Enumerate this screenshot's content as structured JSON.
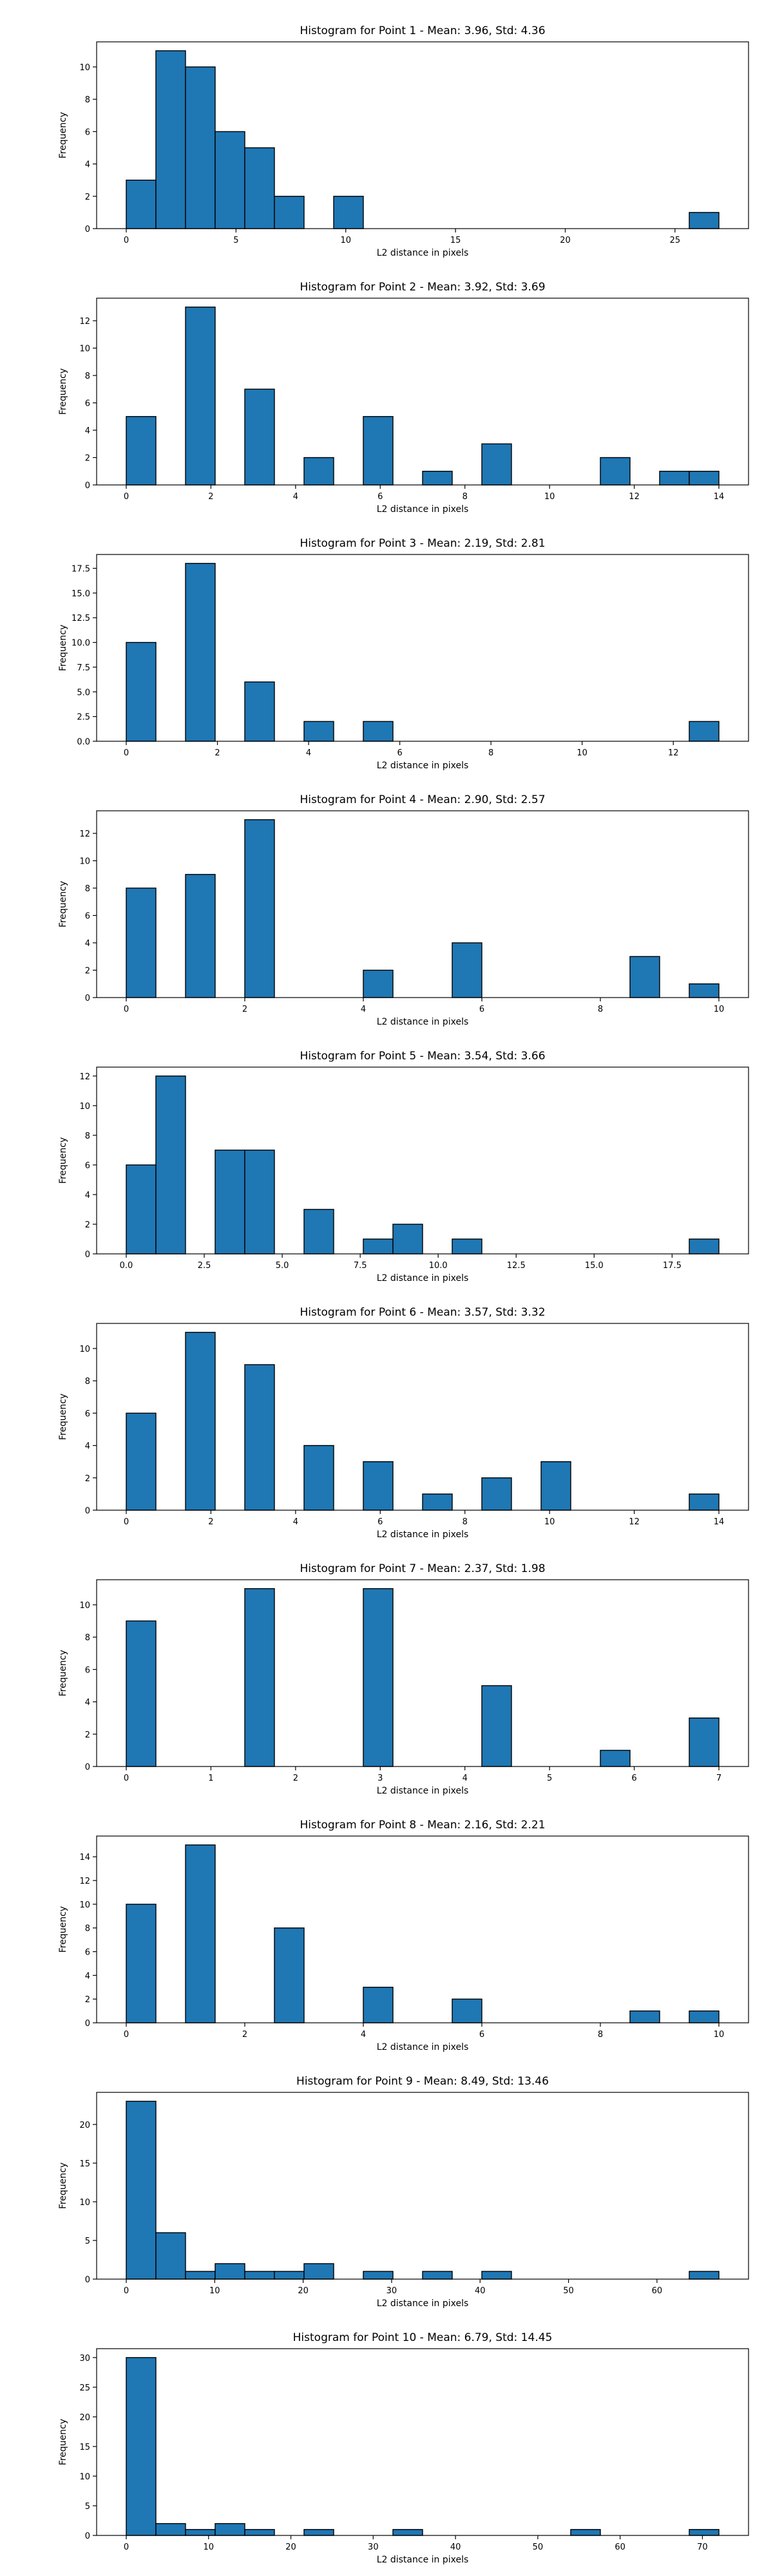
{
  "chart_data": [
    {
      "type": "bar",
      "title": "Histogram for Point 1 - Mean: 3.96, Std: 4.36",
      "xlabel": "L2 distance in pixels",
      "ylabel": "Frequency",
      "xlim": [
        -1.35,
        28.35
      ],
      "ylim": [
        0,
        11.55
      ],
      "xticks": [
        0,
        5,
        10,
        15,
        20,
        25
      ],
      "xtick_labels": [
        "0",
        "5",
        "10",
        "15",
        "20",
        "25"
      ],
      "yticks": [
        0,
        2,
        4,
        6,
        8,
        10
      ],
      "ytick_labels": [
        "0",
        "2",
        "4",
        "6",
        "8",
        "10"
      ],
      "bin_edges": [
        0,
        1.35,
        2.7,
        4.05,
        5.4,
        6.75,
        8.1,
        9.45,
        10.8,
        12.15,
        13.5,
        14.85,
        16.2,
        17.55,
        18.9,
        20.25,
        21.6,
        22.95,
        24.3,
        25.65,
        27.0
      ],
      "counts": [
        3,
        11,
        10,
        6,
        5,
        2,
        0,
        2,
        0,
        0,
        0,
        0,
        0,
        0,
        0,
        0,
        0,
        0,
        0,
        1
      ],
      "color": "#1f77b4",
      "edgecolor": "#000000",
      "grid": false,
      "legend": "none"
    },
    {
      "type": "bar",
      "title": "Histogram for Point 2 - Mean: 3.92, Std: 3.69",
      "xlabel": "L2 distance in pixels",
      "ylabel": "Frequency",
      "xlim": [
        -0.7,
        14.7
      ],
      "ylim": [
        0,
        13.65
      ],
      "xticks": [
        0,
        2,
        4,
        6,
        8,
        10,
        12,
        14
      ],
      "xtick_labels": [
        "0",
        "2",
        "4",
        "6",
        "8",
        "10",
        "12",
        "14"
      ],
      "yticks": [
        0,
        2,
        4,
        6,
        8,
        10,
        12
      ],
      "ytick_labels": [
        "0",
        "2",
        "4",
        "6",
        "8",
        "10",
        "12"
      ],
      "bin_edges": [
        0,
        0.7,
        1.4,
        2.1,
        2.8,
        3.5,
        4.2,
        4.9,
        5.6,
        6.3,
        7.0,
        7.7,
        8.4,
        9.1,
        9.8,
        10.5,
        11.2,
        11.9,
        12.6,
        13.3,
        14.0
      ],
      "counts": [
        5,
        0,
        13,
        0,
        7,
        0,
        2,
        0,
        5,
        0,
        1,
        0,
        3,
        0,
        0,
        0,
        2,
        0,
        1,
        1
      ],
      "color": "#1f77b4",
      "edgecolor": "#000000",
      "grid": false,
      "legend": "none"
    },
    {
      "type": "bar",
      "title": "Histogram for Point 3 - Mean: 2.19, Std: 2.81",
      "xlabel": "L2 distance in pixels",
      "ylabel": "Frequency",
      "xlim": [
        -0.65,
        13.65
      ],
      "ylim": [
        0,
        18.9
      ],
      "xticks": [
        0,
        2,
        4,
        6,
        8,
        10,
        12
      ],
      "xtick_labels": [
        "0",
        "2",
        "4",
        "6",
        "8",
        "10",
        "12"
      ],
      "yticks": [
        0,
        2.5,
        5,
        7.5,
        10,
        12.5,
        15,
        17.5
      ],
      "ytick_labels": [
        "0.0",
        "2.5",
        "5.0",
        "7.5",
        "10.0",
        "12.5",
        "15.0",
        "17.5"
      ],
      "bin_edges": [
        0,
        0.65,
        1.3,
        1.95,
        2.6,
        3.25,
        3.9,
        4.55,
        5.2,
        5.85,
        6.5,
        7.15,
        7.8,
        8.45,
        9.1,
        9.75,
        10.4,
        11.05,
        11.7,
        12.35,
        13.0
      ],
      "counts": [
        10,
        0,
        18,
        0,
        6,
        0,
        2,
        0,
        2,
        0,
        0,
        0,
        0,
        0,
        0,
        0,
        0,
        0,
        0,
        2
      ],
      "color": "#1f77b4",
      "edgecolor": "#000000",
      "grid": false,
      "legend": "none"
    },
    {
      "type": "bar",
      "title": "Histogram for Point 4 - Mean: 2.90, Std: 2.57",
      "xlabel": "L2 distance in pixels",
      "ylabel": "Frequency",
      "xlim": [
        -0.5,
        10.5
      ],
      "ylim": [
        0,
        13.65
      ],
      "xticks": [
        0,
        2,
        4,
        6,
        8,
        10
      ],
      "xtick_labels": [
        "0",
        "2",
        "4",
        "6",
        "8",
        "10"
      ],
      "yticks": [
        0,
        2,
        4,
        6,
        8,
        10,
        12
      ],
      "ytick_labels": [
        "0",
        "2",
        "4",
        "6",
        "8",
        "10",
        "12"
      ],
      "bin_edges": [
        0,
        0.5,
        1.0,
        1.5,
        2.0,
        2.5,
        3.0,
        3.5,
        4.0,
        4.5,
        5.0,
        5.5,
        6.0,
        6.5,
        7.0,
        7.5,
        8.0,
        8.5,
        9.0,
        9.5,
        10.0
      ],
      "counts": [
        8,
        0,
        9,
        0,
        13,
        0,
        0,
        0,
        2,
        0,
        0,
        4,
        0,
        0,
        0,
        0,
        0,
        3,
        0,
        1
      ],
      "color": "#1f77b4",
      "edgecolor": "#000000",
      "grid": false,
      "legend": "none"
    },
    {
      "type": "bar",
      "title": "Histogram for Point 5 - Mean: 3.54, Std: 3.66",
      "xlabel": "L2 distance in pixels",
      "ylabel": "Frequency",
      "xlim": [
        -0.95,
        19.95
      ],
      "ylim": [
        0,
        12.6
      ],
      "xticks": [
        0,
        2.5,
        5,
        7.5,
        10,
        12.5,
        15,
        17.5
      ],
      "xtick_labels": [
        "0.0",
        "2.5",
        "5.0",
        "7.5",
        "10.0",
        "12.5",
        "15.0",
        "17.5"
      ],
      "yticks": [
        0,
        2,
        4,
        6,
        8,
        10,
        12
      ],
      "ytick_labels": [
        "0",
        "2",
        "4",
        "6",
        "8",
        "10",
        "12"
      ],
      "bin_edges": [
        0,
        0.95,
        1.9,
        2.85,
        3.8,
        4.75,
        5.7,
        6.65,
        7.6,
        8.55,
        9.5,
        10.45,
        11.4,
        12.35,
        13.3,
        14.25,
        15.2,
        16.15,
        17.1,
        18.05,
        19.0
      ],
      "counts": [
        6,
        12,
        0,
        7,
        7,
        0,
        3,
        0,
        1,
        2,
        0,
        1,
        0,
        0,
        0,
        0,
        0,
        0,
        0,
        1
      ],
      "color": "#1f77b4",
      "edgecolor": "#000000",
      "grid": false,
      "legend": "none"
    },
    {
      "type": "bar",
      "title": "Histogram for Point 6 - Mean: 3.57, Std: 3.32",
      "xlabel": "L2 distance in pixels",
      "ylabel": "Frequency",
      "xlim": [
        -0.7,
        14.7
      ],
      "ylim": [
        0,
        11.55
      ],
      "xticks": [
        0,
        2,
        4,
        6,
        8,
        10,
        12,
        14
      ],
      "xtick_labels": [
        "0",
        "2",
        "4",
        "6",
        "8",
        "10",
        "12",
        "14"
      ],
      "yticks": [
        0,
        2,
        4,
        6,
        8,
        10
      ],
      "ytick_labels": [
        "0",
        "2",
        "4",
        "6",
        "8",
        "10"
      ],
      "bin_edges": [
        0,
        0.7,
        1.4,
        2.1,
        2.8,
        3.5,
        4.2,
        4.9,
        5.6,
        6.3,
        7.0,
        7.7,
        8.4,
        9.1,
        9.8,
        10.5,
        11.2,
        11.9,
        12.6,
        13.3,
        14.0
      ],
      "counts": [
        6,
        0,
        11,
        0,
        9,
        0,
        4,
        0,
        3,
        0,
        1,
        0,
        2,
        0,
        3,
        0,
        0,
        0,
        0,
        1
      ],
      "color": "#1f77b4",
      "edgecolor": "#000000",
      "grid": false,
      "legend": "none"
    },
    {
      "type": "bar",
      "title": "Histogram for Point 7 - Mean: 2.37, Std: 1.98",
      "xlabel": "L2 distance in pixels",
      "ylabel": "Frequency",
      "xlim": [
        -0.35,
        7.35
      ],
      "ylim": [
        0,
        11.55
      ],
      "xticks": [
        0,
        1,
        2,
        3,
        4,
        5,
        6,
        7
      ],
      "xtick_labels": [
        "0",
        "1",
        "2",
        "3",
        "4",
        "5",
        "6",
        "7"
      ],
      "yticks": [
        0,
        2,
        4,
        6,
        8,
        10
      ],
      "ytick_labels": [
        "0",
        "2",
        "4",
        "6",
        "8",
        "10"
      ],
      "bin_edges": [
        0,
        0.35,
        0.7,
        1.05,
        1.4,
        1.75,
        2.1,
        2.45,
        2.8,
        3.15,
        3.5,
        3.85,
        4.2,
        4.55,
        4.9,
        5.25,
        5.6,
        5.95,
        6.3,
        6.65,
        7.0
      ],
      "counts": [
        9,
        0,
        0,
        0,
        11,
        0,
        0,
        0,
        11,
        0,
        0,
        0,
        5,
        0,
        0,
        0,
        1,
        0,
        0,
        3
      ],
      "color": "#1f77b4",
      "edgecolor": "#000000",
      "grid": false,
      "legend": "none"
    },
    {
      "type": "bar",
      "title": "Histogram for Point 8 - Mean: 2.16, Std: 2.21",
      "xlabel": "L2 distance in pixels",
      "ylabel": "Frequency",
      "xlim": [
        -0.5,
        10.5
      ],
      "ylim": [
        0,
        15.75
      ],
      "xticks": [
        0,
        2,
        4,
        6,
        8,
        10
      ],
      "xtick_labels": [
        "0",
        "2",
        "4",
        "6",
        "8",
        "10"
      ],
      "yticks": [
        0,
        2,
        4,
        6,
        8,
        10,
        12,
        14
      ],
      "ytick_labels": [
        "0",
        "2",
        "4",
        "6",
        "8",
        "10",
        "12",
        "14"
      ],
      "bin_edges": [
        0,
        0.5,
        1.0,
        1.5,
        2.0,
        2.5,
        3.0,
        3.5,
        4.0,
        4.5,
        5.0,
        5.5,
        6.0,
        6.5,
        7.0,
        7.5,
        8.0,
        8.5,
        9.0,
        9.5,
        10.0
      ],
      "counts": [
        10,
        0,
        15,
        0,
        0,
        8,
        0,
        0,
        3,
        0,
        0,
        2,
        0,
        0,
        0,
        0,
        0,
        1,
        0,
        1
      ],
      "color": "#1f77b4",
      "edgecolor": "#000000",
      "grid": false,
      "legend": "none"
    },
    {
      "type": "bar",
      "title": "Histogram for Point 9 - Mean: 8.49, Std: 13.46",
      "xlabel": "L2 distance in pixels",
      "ylabel": "Frequency",
      "xlim": [
        -3.35,
        70.35
      ],
      "ylim": [
        0,
        24.15
      ],
      "xticks": [
        0,
        10,
        20,
        30,
        40,
        50,
        60
      ],
      "xtick_labels": [
        "0",
        "10",
        "20",
        "30",
        "40",
        "50",
        "60"
      ],
      "yticks": [
        0,
        5,
        10,
        15,
        20
      ],
      "ytick_labels": [
        "0",
        "5",
        "10",
        "15",
        "20"
      ],
      "bin_edges": [
        0,
        3.35,
        6.7,
        10.05,
        13.4,
        16.75,
        20.1,
        23.45,
        26.8,
        30.15,
        33.5,
        36.85,
        40.2,
        43.55,
        46.9,
        50.25,
        53.6,
        56.95,
        60.3,
        63.65,
        67.0
      ],
      "counts": [
        23,
        6,
        1,
        2,
        1,
        1,
        2,
        0,
        1,
        0,
        1,
        0,
        1,
        0,
        0,
        0,
        0,
        0,
        0,
        1
      ],
      "color": "#1f77b4",
      "edgecolor": "#000000",
      "grid": false,
      "legend": "none"
    },
    {
      "type": "bar",
      "title": "Histogram for Point 10 - Mean: 6.79, Std: 14.45",
      "xlabel": "L2 distance in pixels",
      "ylabel": "Frequency",
      "xlim": [
        -3.6,
        75.6
      ],
      "ylim": [
        0,
        31.5
      ],
      "xticks": [
        0,
        10,
        20,
        30,
        40,
        50,
        60,
        70
      ],
      "xtick_labels": [
        "0",
        "10",
        "20",
        "30",
        "40",
        "50",
        "60",
        "70"
      ],
      "yticks": [
        0,
        5,
        10,
        15,
        20,
        25,
        30
      ],
      "ytick_labels": [
        "0",
        "5",
        "10",
        "15",
        "20",
        "25",
        "30"
      ],
      "bin_edges": [
        0,
        3.6,
        7.2,
        10.8,
        14.4,
        18.0,
        21.6,
        25.2,
        28.8,
        32.4,
        36.0,
        39.6,
        43.2,
        46.8,
        50.4,
        54.0,
        57.6,
        61.2,
        64.8,
        68.4,
        72.0
      ],
      "counts": [
        30,
        2,
        1,
        2,
        1,
        0,
        1,
        0,
        0,
        1,
        0,
        0,
        0,
        0,
        0,
        1,
        0,
        0,
        0,
        1
      ],
      "color": "#1f77b4",
      "edgecolor": "#000000",
      "grid": false,
      "legend": "none"
    }
  ]
}
